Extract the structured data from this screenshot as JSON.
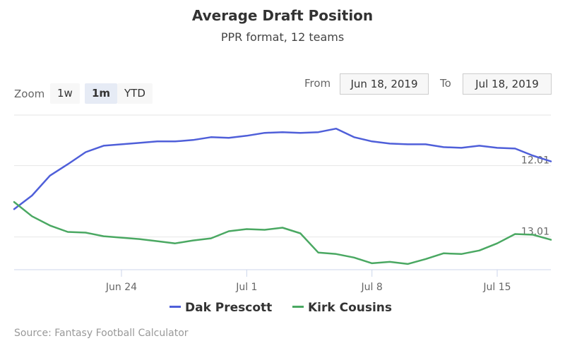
{
  "header": {
    "title": "Average Draft Position",
    "subtitle": "PPR format, 12 teams"
  },
  "range_selector": {
    "zoom_label": "Zoom",
    "buttons": [
      "1w",
      "1m",
      "YTD"
    ],
    "active": "1m",
    "from_label": "From",
    "from_value": "Jun 18, 2019",
    "to_label": "To",
    "to_value": "Jul 18, 2019"
  },
  "credits": "Source: Fantasy Football Calculator",
  "chart_data": {
    "type": "line",
    "x_start": "Jun 18, 2019",
    "x": [
      "2019-06-18",
      "2019-06-19",
      "2019-06-20",
      "2019-06-21",
      "2019-06-22",
      "2019-06-23",
      "2019-06-24",
      "2019-06-25",
      "2019-06-26",
      "2019-06-27",
      "2019-06-28",
      "2019-06-29",
      "2019-06-30",
      "2019-07-01",
      "2019-07-02",
      "2019-07-03",
      "2019-07-04",
      "2019-07-05",
      "2019-07-06",
      "2019-07-07",
      "2019-07-08",
      "2019-07-09",
      "2019-07-10",
      "2019-07-11",
      "2019-07-12",
      "2019-07-13",
      "2019-07-14",
      "2019-07-15",
      "2019-07-16",
      "2019-07-17",
      "2019-07-18"
    ],
    "x_ticks": [
      "Jun 24",
      "Jul 1",
      "Jul 8",
      "Jul 15"
    ],
    "y_ticks": [
      "12.01",
      "13.01"
    ],
    "y_reversed": true,
    "ylim": [
      11.3,
      13.47
    ],
    "grid": true,
    "legend_position": "bottom",
    "series": [
      {
        "name": "Dak Prescott",
        "color": "#4f5fd9",
        "values": [
          12.62,
          12.43,
          12.15,
          11.99,
          11.82,
          11.73,
          11.71,
          11.69,
          11.67,
          11.67,
          11.65,
          11.61,
          11.62,
          11.59,
          11.55,
          11.54,
          11.55,
          11.54,
          11.49,
          11.61,
          11.67,
          11.7,
          11.71,
          11.71,
          11.75,
          11.76,
          11.73,
          11.76,
          11.77,
          11.87,
          11.95
        ]
      },
      {
        "name": "Kirk Cousins",
        "color": "#4aa862",
        "values": [
          12.52,
          12.72,
          12.85,
          12.94,
          12.95,
          13.0,
          13.02,
          13.04,
          13.07,
          13.1,
          13.06,
          13.03,
          12.93,
          12.9,
          12.91,
          12.88,
          12.96,
          13.23,
          13.25,
          13.3,
          13.38,
          13.36,
          13.39,
          13.32,
          13.24,
          13.25,
          13.2,
          13.1,
          12.97,
          12.98,
          13.05
        ]
      }
    ]
  }
}
